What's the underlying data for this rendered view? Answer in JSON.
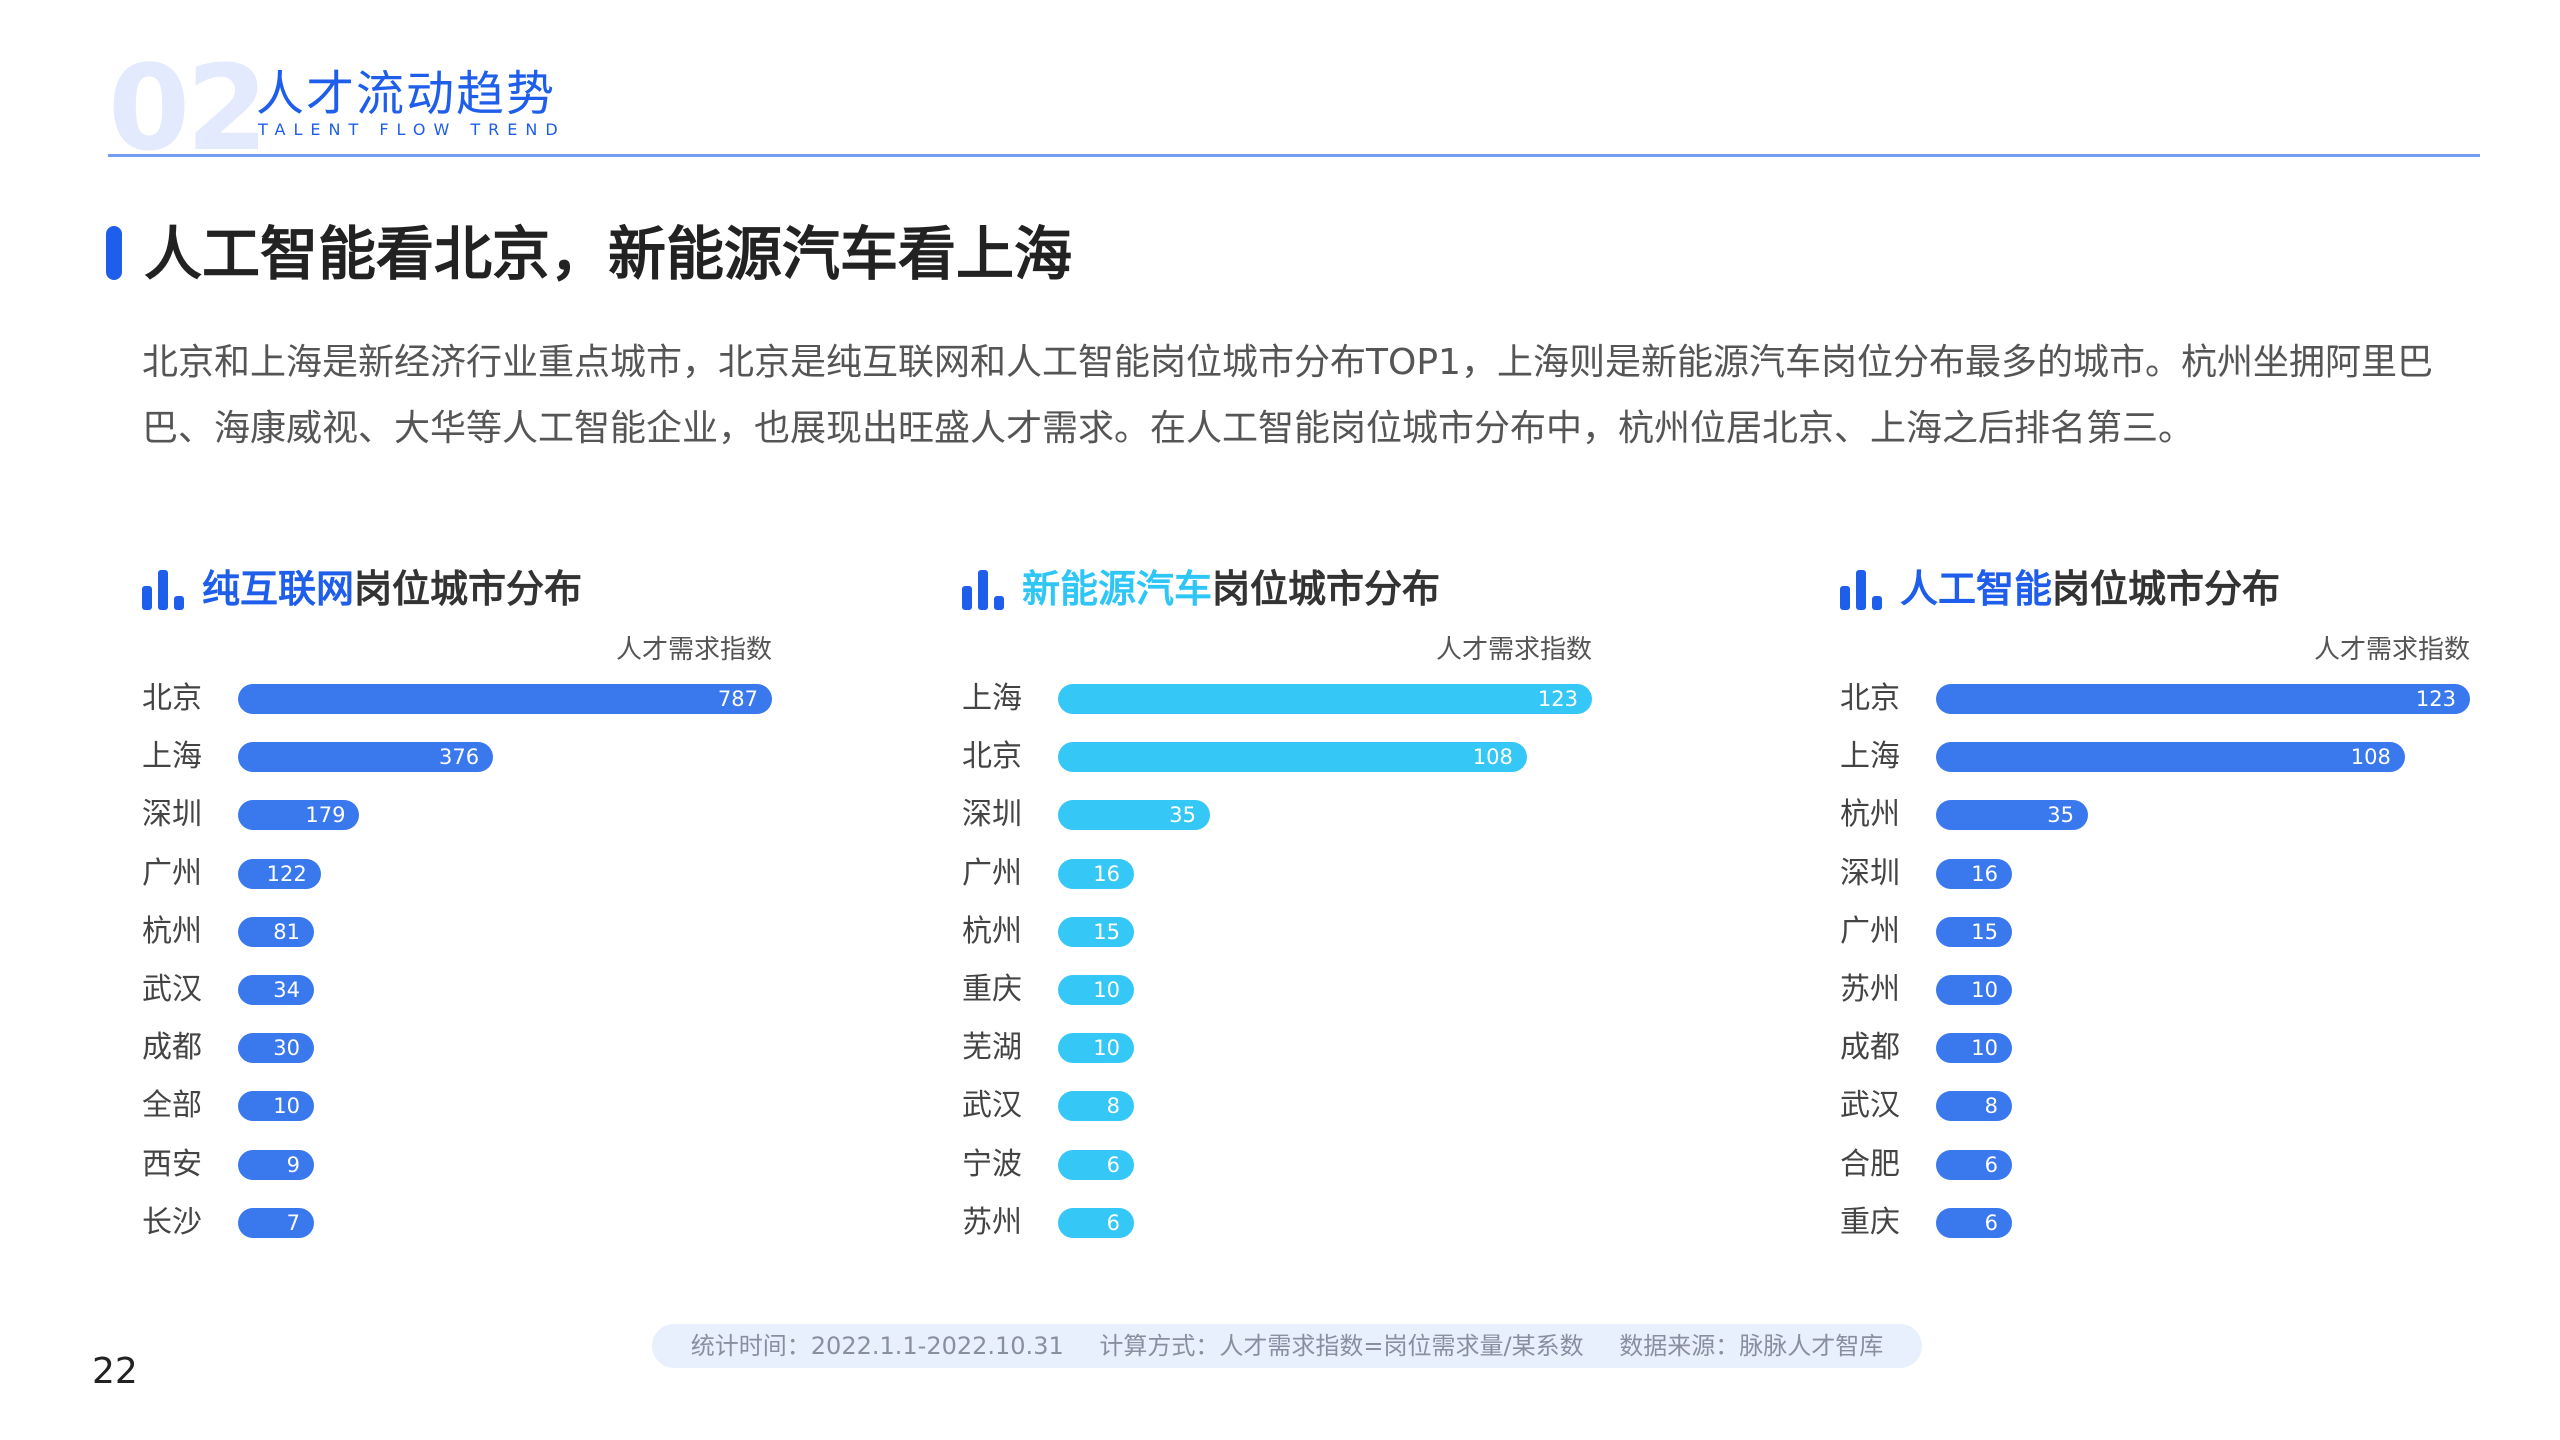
{
  "header": {
    "number": "02",
    "title_cn": "人才流动趋势",
    "title_en": "TALENT FLOW TREND"
  },
  "section": {
    "title": "人工智能看北京，新能源汽车看上海",
    "description": "北京和上海是新经济行业重点城市，北京是纯互联网和人工智能岗位城市分布TOP1，上海则是新能源汽车岗位分布最多的城市。杭州坐拥阿里巴巴、海康威视、大华等人工智能企业，也展现出旺盛人才需求。在人工智能岗位城市分布中，杭州位居北京、上海之后排名第三。"
  },
  "colors": {
    "accent": "#1e5eea",
    "bar_blue": "#3a78ee",
    "bar_cyan": "#35c8f7"
  },
  "chart_data": [
    {
      "type": "bar",
      "orientation": "horizontal",
      "title_highlight": "纯互联网",
      "title_rest": "岗位城市分布",
      "axis_label": "人才需求指数",
      "color": "#3a78ee",
      "categories": [
        "北京",
        "上海",
        "深圳",
        "广州",
        "杭州",
        "武汉",
        "成都",
        "全部",
        "西安",
        "长沙"
      ],
      "values": [
        787,
        376,
        179,
        122,
        81,
        34,
        30,
        10,
        9,
        7
      ]
    },
    {
      "type": "bar",
      "orientation": "horizontal",
      "title_highlight": "新能源汽车",
      "title_rest": "岗位城市分布",
      "axis_label": "人才需求指数",
      "color": "#35c8f7",
      "categories": [
        "上海",
        "北京",
        "深圳",
        "广州",
        "杭州",
        "重庆",
        "芜湖",
        "武汉",
        "宁波",
        "苏州"
      ],
      "values": [
        123,
        108,
        35,
        16,
        15,
        10,
        10,
        8,
        6,
        6
      ]
    },
    {
      "type": "bar",
      "orientation": "horizontal",
      "title_highlight": "人工智能",
      "title_rest": "岗位城市分布",
      "axis_label": "人才需求指数",
      "color": "#3a78ee",
      "categories": [
        "北京",
        "上海",
        "杭州",
        "深圳",
        "广州",
        "苏州",
        "成都",
        "武汉",
        "合肥",
        "重庆"
      ],
      "values": [
        123,
        108,
        35,
        16,
        15,
        10,
        10,
        8,
        6,
        6
      ]
    }
  ],
  "footer": {
    "stat_time": "统计时间：2022.1.1-2022.10.31",
    "method": "计算方式：人才需求指数=岗位需求量/某系数",
    "source": "数据来源：脉脉人才智库",
    "page_number": "22"
  }
}
